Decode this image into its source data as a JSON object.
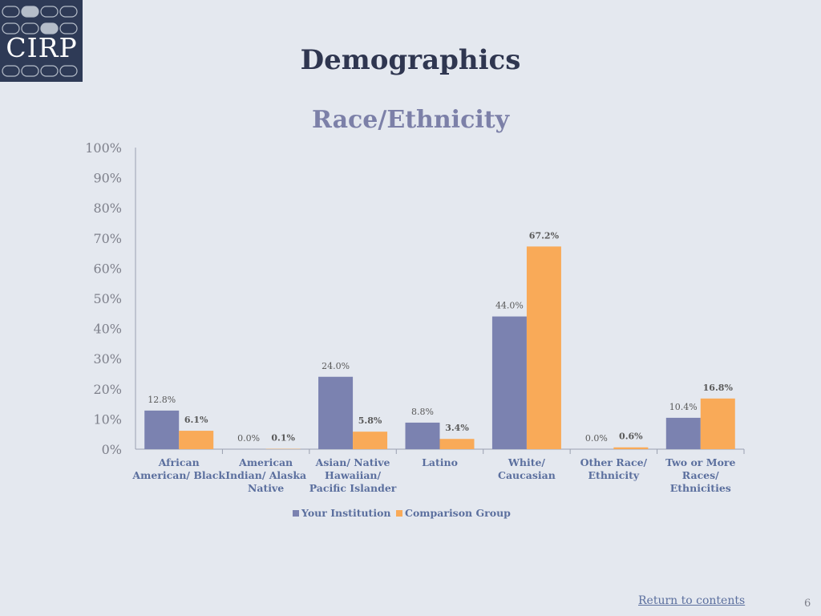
{
  "logo": {
    "text": "CIRP"
  },
  "page": {
    "title": "Demographics",
    "return_link": "Return to contents",
    "page_number": "6"
  },
  "colors": {
    "your_institution": "#7b82b0",
    "comparison_group": "#f9aa58",
    "axis": "#9aa0b0",
    "tick_text": "#7d7f8a",
    "category_text": "#5b6f9e",
    "label_text": "#595959"
  },
  "chart_data": {
    "type": "bar",
    "title": "Race/Ethnicity",
    "xlabel": "",
    "ylabel": "",
    "ylim": [
      0,
      100
    ],
    "yticks": [
      "0%",
      "10%",
      "20%",
      "30%",
      "40%",
      "50%",
      "60%",
      "70%",
      "80%",
      "90%",
      "100%"
    ],
    "categories": [
      [
        "African",
        "American/ Black"
      ],
      [
        "American",
        "Indian/ Alaska",
        "Native"
      ],
      [
        "Asian/ Native",
        "Hawaiian/",
        "Pacific Islander"
      ],
      [
        "Latino"
      ],
      [
        "White/",
        "Caucasian"
      ],
      [
        "Other Race/",
        "Ethnicity"
      ],
      [
        "Two or More",
        "Races/",
        "Ethnicities"
      ]
    ],
    "series": [
      {
        "name": "Your Institution",
        "values": [
          12.8,
          0.0,
          24.0,
          8.8,
          44.0,
          0.0,
          10.4
        ],
        "labels": [
          "12.8%",
          "0.0%",
          "24.0%",
          "8.8%",
          "44.0%",
          "0.0%",
          "10.4%"
        ]
      },
      {
        "name": "Comparison Group",
        "values": [
          6.1,
          0.1,
          5.8,
          3.4,
          67.2,
          0.6,
          16.8
        ],
        "labels": [
          "6.1%",
          "0.1%",
          "5.8%",
          "3.4%",
          "67.2%",
          "0.6%",
          "16.8%"
        ]
      }
    ],
    "grid": false,
    "legend_position": "bottom"
  }
}
